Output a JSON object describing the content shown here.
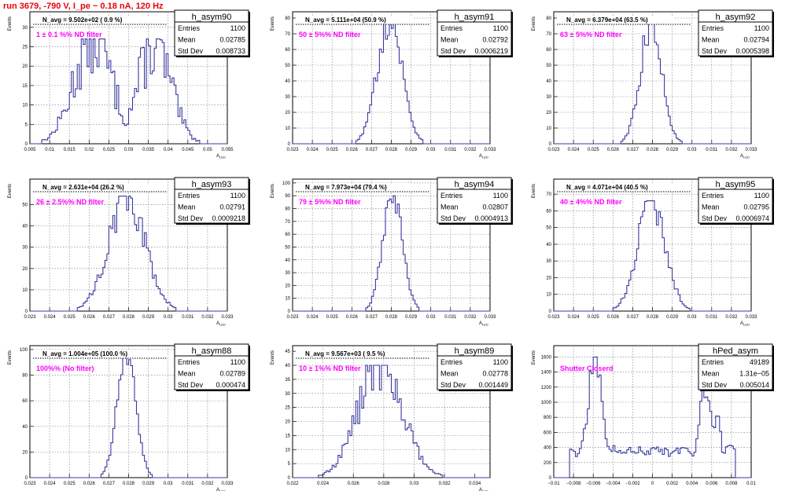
{
  "page_title": "run 3679,  -790 V, I_pe ~ 0.18 nA, 120 Hz",
  "colors": {
    "hist_line": "#3a3aa0",
    "note": "#ff00ff",
    "title": "#e8000b"
  },
  "chart_data": [
    {
      "type": "histogram",
      "name": "h_asym90",
      "navg": "N_avg = 9.502e+02 ( 0.9 %)",
      "note": "1 ± 0.1 %% ND filter",
      "stats": [
        [
          "Entries",
          "1100"
        ],
        [
          "Mean",
          "0.02785"
        ],
        [
          "Std Dev",
          "0.008733"
        ]
      ],
      "xlim": [
        0.005,
        0.055
      ],
      "ylim": [
        0,
        34
      ],
      "xticks": [
        0.005,
        0.01,
        0.015,
        0.02,
        0.025,
        0.03,
        0.035,
        0.04,
        0.045,
        0.05,
        0.055
      ],
      "xtick_labels": [
        "0.005",
        "0.01",
        "0.015",
        "0.02",
        "0.025",
        "0.03",
        "0.035",
        "0.04",
        "0.045",
        "0.05",
        "0.055"
      ],
      "yticks": [
        0,
        5,
        10,
        15,
        20,
        25,
        30
      ],
      "ytick_labels": [
        "0",
        "5",
        "10",
        "15",
        "20",
        "25",
        "30"
      ],
      "ylabel": "Events",
      "xlabel": "A_LED",
      "mean": 0.0278,
      "sigma": 0.0087,
      "peak": 27,
      "shape": "double",
      "noise": 0.35
    },
    {
      "type": "histogram",
      "name": "h_asym91",
      "navg": "N_avg = 5.111e+04 (50.9 %)",
      "note": "50 ± 5%% ND filter",
      "stats": [
        [
          "Entries",
          "1100"
        ],
        [
          "Mean",
          "0.02792"
        ],
        [
          "Std Dev",
          "0.0006219"
        ]
      ],
      "xlim": [
        0.023,
        0.033
      ],
      "ylim": [
        0,
        84
      ],
      "xticks": [
        0.023,
        0.024,
        0.025,
        0.026,
        0.027,
        0.028,
        0.029,
        0.03,
        0.031,
        0.032,
        0.033
      ],
      "xtick_labels": [
        "0.023",
        "0.024",
        "0.025",
        "0.026",
        "0.027",
        "0.028",
        "0.029",
        "0.03",
        "0.031",
        "0.032",
        "0.033"
      ],
      "yticks": [
        0,
        10,
        20,
        30,
        40,
        50,
        60,
        70,
        80
      ],
      "ytick_labels": [
        "0",
        "10",
        "20",
        "30",
        "40",
        "50",
        "60",
        "70",
        "80"
      ],
      "ylabel": "Events",
      "xlabel": "A_LED",
      "mean": 0.02792,
      "sigma": 0.00062,
      "peak": 80,
      "shape": "gauss",
      "noise": 0.15
    },
    {
      "type": "histogram",
      "name": "h_asym92",
      "navg": "N_avg = 6.379e+04 (63.5 %)",
      "note": "63 ± 5%% ND filter",
      "stats": [
        [
          "Entries",
          "1100"
        ],
        [
          "Mean",
          "0.02794"
        ],
        [
          "Std Dev",
          "0.0005398"
        ]
      ],
      "xlim": [
        0.023,
        0.033
      ],
      "ylim": [
        0,
        84
      ],
      "xticks": [
        0.023,
        0.024,
        0.025,
        0.026,
        0.027,
        0.028,
        0.029,
        0.03,
        0.031,
        0.032,
        0.033
      ],
      "xtick_labels": [
        "0.023",
        "0.024",
        "0.025",
        "0.026",
        "0.027",
        "0.028",
        "0.029",
        "0.03",
        "0.031",
        "0.032",
        "0.033"
      ],
      "yticks": [
        0,
        10,
        20,
        30,
        40,
        50,
        60,
        70,
        80
      ],
      "ytick_labels": [
        "0",
        "10",
        "20",
        "30",
        "40",
        "50",
        "60",
        "70",
        "80"
      ],
      "ylabel": "Events",
      "xlabel": "A_LED",
      "mean": 0.02794,
      "sigma": 0.00054,
      "peak": 78,
      "shape": "gauss",
      "noise": 0.15
    },
    {
      "type": "histogram",
      "name": "h_asym93",
      "navg": "N_avg = 2.631e+04 (26.2 %)",
      "note": "26 ± 2.5%% ND filter",
      "stats": [
        [
          "Entries",
          "1100"
        ],
        [
          "Mean",
          "0.02791"
        ],
        [
          "Std Dev",
          "0.0009218"
        ]
      ],
      "xlim": [
        0.023,
        0.033
      ],
      "ylim": [
        0,
        62
      ],
      "xticks": [
        0.023,
        0.024,
        0.025,
        0.026,
        0.027,
        0.028,
        0.029,
        0.03,
        0.031,
        0.032,
        0.033
      ],
      "xtick_labels": [
        "0.023",
        "0.024",
        "0.025",
        "0.026",
        "0.027",
        "0.028",
        "0.029",
        "0.03",
        "0.031",
        "0.032",
        "0.033"
      ],
      "yticks": [
        0,
        10,
        20,
        30,
        40,
        50
      ],
      "ytick_labels": [
        "0",
        "10",
        "20",
        "30",
        "40",
        "50"
      ],
      "ylabel": "Events",
      "xlabel": "A_LED",
      "mean": 0.02791,
      "sigma": 0.00092,
      "peak": 54,
      "shape": "gauss",
      "noise": 0.18
    },
    {
      "type": "histogram",
      "name": "h_asym94",
      "navg": "N_avg = 7.973e+04 (79.4 %)",
      "note": "79 ± 5%% ND filter",
      "stats": [
        [
          "Entries",
          "1100"
        ],
        [
          "Mean",
          "0.02807"
        ],
        [
          "Std Dev",
          "0.0004913"
        ]
      ],
      "xlim": [
        0.023,
        0.033
      ],
      "ylim": [
        0,
        103
      ],
      "xticks": [
        0.023,
        0.024,
        0.025,
        0.026,
        0.027,
        0.028,
        0.029,
        0.03,
        0.031,
        0.032,
        0.033
      ],
      "xtick_labels": [
        "0.023",
        "0.024",
        "0.025",
        "0.026",
        "0.027",
        "0.028",
        "0.029",
        "0.03",
        "0.031",
        "0.032",
        "0.033"
      ],
      "yticks": [
        0,
        10,
        20,
        30,
        40,
        50,
        60,
        70,
        80,
        90,
        100
      ],
      "ytick_labels": [
        "0",
        "10",
        "20",
        "30",
        "40",
        "50",
        "60",
        "70",
        "80",
        "90",
        "100"
      ],
      "ylabel": "Events",
      "xlabel": "A_LED",
      "mean": 0.02807,
      "sigma": 0.00049,
      "peak": 90,
      "shape": "gauss",
      "noise": 0.12
    },
    {
      "type": "histogram",
      "name": "h_asym95",
      "navg": "N_avg = 4.071e+04 (40.5 %)",
      "note": "40 ± 4%% ND filter",
      "stats": [
        [
          "Entries",
          "1100"
        ],
        [
          "Mean",
          "0.02795"
        ],
        [
          "Std Dev",
          "0.0006974"
        ]
      ],
      "xlim": [
        0.023,
        0.033
      ],
      "ylim": [
        0,
        79
      ],
      "xticks": [
        0.023,
        0.024,
        0.025,
        0.026,
        0.027,
        0.028,
        0.029,
        0.03,
        0.031,
        0.032,
        0.033
      ],
      "xtick_labels": [
        "0.023",
        "0.024",
        "0.025",
        "0.026",
        "0.027",
        "0.028",
        "0.029",
        "0.03",
        "0.031",
        "0.032",
        "0.033"
      ],
      "yticks": [
        0,
        10,
        20,
        30,
        40,
        50,
        60,
        70
      ],
      "ytick_labels": [
        "0",
        "10",
        "20",
        "30",
        "40",
        "50",
        "60",
        "70"
      ],
      "ylabel": "Events",
      "xlabel": "A_LED",
      "mean": 0.02795,
      "sigma": 0.0007,
      "peak": 66,
      "shape": "gauss",
      "noise": 0.15
    },
    {
      "type": "histogram",
      "name": "h_asym88",
      "navg": "N_avg = 1.004e+05 (100.0 %)",
      "note": "100%% (No filter)",
      "stats": [
        [
          "Entries",
          "1100"
        ],
        [
          "Mean",
          "0.02789"
        ],
        [
          "Std Dev",
          "0.000474"
        ]
      ],
      "xlim": [
        0.023,
        0.033
      ],
      "ylim": [
        0,
        103
      ],
      "xticks": [
        0.023,
        0.024,
        0.025,
        0.026,
        0.027,
        0.028,
        0.029,
        0.03,
        0.031,
        0.032,
        0.033
      ],
      "xtick_labels": [
        "0.023",
        "0.024",
        "0.025",
        "0.026",
        "0.027",
        "0.028",
        "0.029",
        "0.03",
        "0.031",
        "0.032",
        "0.033"
      ],
      "yticks": [
        0,
        20,
        40,
        60,
        80,
        100
      ],
      "ytick_labels": [
        "0",
        "20",
        "40",
        "60",
        "80",
        "100"
      ],
      "ylabel": "Events",
      "xlabel": "A_LED",
      "mean": 0.02789,
      "sigma": 0.00047,
      "peak": 96,
      "shape": "gauss",
      "noise": 0.12
    },
    {
      "type": "histogram",
      "name": "h_asym89",
      "navg": "N_avg = 9.567e+03 ( 9.5 %)",
      "note": "10 ± 1%% ND filter",
      "stats": [
        [
          "Entries",
          "1100"
        ],
        [
          "Mean",
          "0.02778"
        ],
        [
          "Std Dev",
          "0.001449"
        ]
      ],
      "xlim": [
        0.022,
        0.035
      ],
      "ylim": [
        0,
        47
      ],
      "xticks": [
        0.022,
        0.024,
        0.026,
        0.028,
        0.03,
        0.032,
        0.034
      ],
      "xtick_labels": [
        "0.022",
        "0.024",
        "0.026",
        "0.028",
        "0.03",
        "0.032",
        "0.034"
      ],
      "yticks": [
        0,
        5,
        10,
        15,
        20,
        25,
        30,
        35,
        40,
        45
      ],
      "ytick_labels": [
        "0",
        "5",
        "10",
        "15",
        "20",
        "25",
        "30",
        "35",
        "40",
        "45"
      ],
      "ylabel": "Events",
      "xlabel": "A_LED",
      "mean": 0.02778,
      "sigma": 0.00145,
      "peak": 40,
      "shape": "gauss",
      "noise": 0.22
    },
    {
      "type": "histogram",
      "name": "hPed_asym",
      "navg": "",
      "note": "Shutter Closerd",
      "stats": [
        [
          "Entries",
          "49189"
        ],
        [
          "Mean",
          "1.31e−05"
        ],
        [
          "Std Dev",
          "0.005014"
        ]
      ],
      "xlim": [
        -0.01,
        0.01
      ],
      "ylim": [
        0,
        1750
      ],
      "xticks": [
        -0.01,
        -0.008,
        -0.006,
        -0.004,
        -0.002,
        0,
        0.002,
        0.004,
        0.006,
        0.008,
        0.01
      ],
      "xtick_labels": [
        "−0.01",
        "−0.008",
        "−0.006",
        "−0.004",
        "−0.002",
        "0",
        "0.002",
        "0.004",
        "0.006",
        "0.008",
        "0.01"
      ],
      "yticks": [
        0,
        200,
        400,
        600,
        800,
        1000,
        1200,
        1400,
        1600
      ],
      "ytick_labels": [
        "0",
        "200",
        "400",
        "600",
        "800",
        "1000",
        "1200",
        "1400",
        "1600"
      ],
      "ylabel": "Events",
      "xlabel": "",
      "mean": 0,
      "sigma": 0.005,
      "peak": 1600,
      "shape": "ped",
      "noise": 0.15
    }
  ]
}
